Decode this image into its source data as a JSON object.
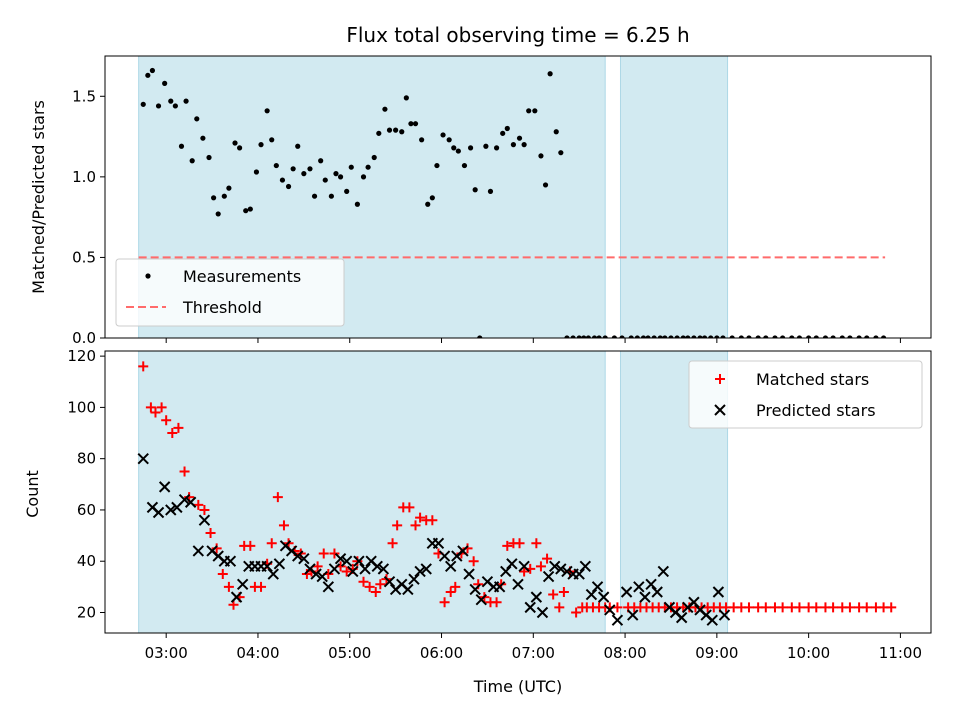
{
  "chart_data": [
    {
      "type": "scatter",
      "title": "Flux total observing time = 6.25 h",
      "xlabel": "",
      "ylabel": "Matched/Predicted stars",
      "xlim": [
        "02:20",
        "11:20"
      ],
      "ylim": [
        0.0,
        1.75
      ],
      "yticks": [
        0.0,
        0.5,
        1.0,
        1.5
      ],
      "ytick_labels": [
        "0.0",
        "0.5",
        "1.0",
        "1.5"
      ],
      "shaded_intervals": [
        [
          "02:42",
          "07:47"
        ],
        [
          "07:57",
          "09:07"
        ]
      ],
      "shade_color": "#add8e6",
      "legend_position": "lower-left",
      "legend": [
        "Measurements",
        "Threshold"
      ],
      "threshold": {
        "name": "Threshold",
        "value": 0.5,
        "x_range": [
          "02:42",
          "10:50"
        ],
        "color": "#ff6b6b",
        "style": "dashed"
      },
      "series": [
        {
          "name": "Measurements",
          "color": "#000000",
          "marker": "dot",
          "x": [
            "02:45",
            "02:48",
            "02:51",
            "02:55",
            "02:59",
            "03:03",
            "03:06",
            "03:10",
            "03:13",
            "03:17",
            "03:20",
            "03:24",
            "03:28",
            "03:31",
            "03:34",
            "03:38",
            "03:41",
            "03:45",
            "03:48",
            "03:52",
            "03:55",
            "03:59",
            "04:02",
            "04:06",
            "04:09",
            "04:12",
            "04:16",
            "04:20",
            "04:23",
            "04:26",
            "04:30",
            "04:34",
            "04:37",
            "04:41",
            "04:44",
            "04:48",
            "04:51",
            "04:54",
            "04:58",
            "05:01",
            "05:05",
            "05:09",
            "05:12",
            "05:16",
            "05:19",
            "05:23",
            "05:26",
            "05:30",
            "05:34",
            "05:37",
            "05:40",
            "05:43",
            "05:47",
            "05:51",
            "05:54",
            "05:57",
            "06:01",
            "06:05",
            "06:08",
            "06:11",
            "06:15",
            "06:19",
            "06:22",
            "06:25",
            "06:29",
            "06:32",
            "06:36",
            "06:40",
            "06:43",
            "06:47",
            "06:51",
            "06:54",
            "06:57",
            "07:01",
            "07:05",
            "07:08",
            "07:11",
            "07:15",
            "07:18",
            "07:22",
            "07:26",
            "07:30",
            "07:33",
            "07:36",
            "07:40",
            "07:43",
            "07:47",
            "07:53",
            "07:58",
            "08:04",
            "08:08",
            "08:12",
            "08:15",
            "08:19",
            "08:23",
            "08:26",
            "08:30",
            "08:34",
            "08:38",
            "08:41",
            "08:45",
            "08:49",
            "08:52",
            "08:56",
            "09:00",
            "09:04"
          ],
          "y": [
            1.45,
            1.63,
            1.66,
            1.44,
            1.58,
            1.47,
            1.44,
            1.19,
            1.47,
            1.1,
            1.36,
            1.24,
            1.12,
            0.87,
            0.77,
            0.88,
            0.93,
            1.21,
            1.18,
            0.79,
            0.8,
            1.03,
            1.2,
            1.41,
            1.23,
            1.07,
            0.98,
            0.94,
            1.05,
            1.19,
            1.02,
            1.05,
            0.88,
            1.1,
            0.98,
            0.88,
            1.02,
            1.0,
            0.91,
            1.06,
            0.83,
            1.0,
            1.06,
            1.12,
            1.27,
            1.42,
            1.29,
            1.29,
            1.28,
            1.49,
            1.33,
            1.33,
            1.23,
            0.83,
            0.87,
            1.07,
            1.26,
            1.23,
            1.18,
            1.16,
            1.07,
            1.18,
            0.92,
            0.0,
            1.19,
            0.91,
            1.18,
            1.27,
            1.3,
            1.2,
            1.24,
            1.2,
            1.41,
            1.41,
            1.13,
            0.95,
            1.64,
            1.28,
            1.15,
            0.0,
            0.0,
            0.0,
            0.0,
            0.0,
            0.0,
            0.0,
            0.0,
            0.0,
            0.0,
            0.0,
            0.0,
            0.0,
            0.0,
            0.0,
            0.0,
            0.0,
            0.0,
            0.0,
            0.0,
            0.0,
            0.0,
            0.0,
            0.0,
            0.0,
            0.0,
            0.0
          ],
          "x_tail": [
            "09:10",
            "09:16",
            "09:21",
            "09:27",
            "09:32",
            "09:38",
            "09:43",
            "09:49",
            "09:54",
            "10:00",
            "10:05",
            "10:11",
            "10:16",
            "10:22",
            "10:27",
            "10:33",
            "10:38",
            "10:44",
            "10:49"
          ],
          "y_tail": [
            0.0,
            0.0,
            0.0,
            0.0,
            0.0,
            0.0,
            0.0,
            0.0,
            0.0,
            0.0,
            0.0,
            0.0,
            0.0,
            0.0,
            0.0,
            0.0,
            0.0,
            0.0,
            0.0
          ]
        }
      ]
    },
    {
      "type": "scatter",
      "title": "",
      "xlabel": "Time (UTC)",
      "ylabel": "Count",
      "xlim": [
        "02:20",
        "11:20"
      ],
      "xticks": [
        "03:00",
        "04:00",
        "05:00",
        "06:00",
        "07:00",
        "08:00",
        "09:00",
        "10:00",
        "11:00"
      ],
      "ylim": [
        12,
        122
      ],
      "yticks": [
        20,
        40,
        60,
        80,
        100,
        120
      ],
      "ytick_labels": [
        "20",
        "40",
        "60",
        "80",
        "100",
        "120"
      ],
      "shaded_intervals": [
        [
          "02:42",
          "07:47"
        ],
        [
          "07:57",
          "09:07"
        ]
      ],
      "shade_color": "#add8e6",
      "legend_position": "top-right",
      "legend": [
        "Matched stars",
        "Predicted stars"
      ],
      "series": [
        {
          "name": "Matched stars",
          "color": "#ff0000",
          "marker": "plus",
          "x": [
            "02:45",
            "02:50",
            "02:53",
            "02:57",
            "03:00",
            "03:04",
            "03:08",
            "03:12",
            "03:15",
            "03:21",
            "03:25",
            "03:29",
            "03:33",
            "03:37",
            "03:41",
            "03:44",
            "03:48",
            "03:51",
            "03:55",
            "03:58",
            "04:02",
            "04:06",
            "04:09",
            "04:13",
            "04:17",
            "04:20",
            "04:24",
            "04:28",
            "04:32",
            "04:35",
            "04:39",
            "04:43",
            "04:46",
            "04:50",
            "04:54",
            "04:58",
            "05:02",
            "05:05",
            "05:09",
            "05:13",
            "05:17",
            "05:20",
            "05:24",
            "05:28",
            "05:31",
            "05:35",
            "05:39",
            "05:43",
            "05:46",
            "05:50",
            "05:54",
            "05:58",
            "06:02",
            "06:06",
            "06:09",
            "06:13",
            "06:17",
            "06:21",
            "06:24",
            "06:28",
            "06:32",
            "06:36",
            "06:39",
            "06:43",
            "06:47",
            "06:51",
            "06:54",
            "06:58",
            "07:02",
            "07:05",
            "07:09",
            "07:13",
            "07:17",
            "07:20",
            "07:24",
            "07:28",
            "07:32",
            "07:35",
            "07:39",
            "07:43",
            "07:47",
            "07:50",
            "07:55",
            "08:02",
            "08:06",
            "08:10",
            "08:14",
            "08:18",
            "08:22",
            "08:26",
            "08:30",
            "08:34",
            "08:38",
            "08:42",
            "08:46",
            "08:50",
            "08:54",
            "08:58",
            "09:02",
            "09:06",
            "09:11",
            "09:16",
            "09:21",
            "09:27",
            "09:32",
            "09:38",
            "09:43",
            "09:49",
            "09:54",
            "10:00",
            "10:05",
            "10:11",
            "10:16",
            "10:22",
            "10:27",
            "10:33",
            "10:38",
            "10:44",
            "10:49",
            "10:54"
          ],
          "y": [
            116,
            100,
            98,
            100,
            95,
            90,
            92,
            75,
            65,
            62,
            60,
            51,
            45,
            35,
            30,
            23,
            26,
            46,
            46,
            30,
            30,
            39,
            47,
            65,
            54,
            47,
            44,
            43,
            35,
            36,
            38,
            43,
            35,
            43,
            38,
            36,
            37,
            40,
            32,
            30,
            28,
            31,
            33,
            47,
            54,
            61,
            61,
            54,
            57,
            56,
            56,
            43,
            24,
            28,
            30,
            43,
            45,
            40,
            31,
            26,
            24,
            24,
            31,
            46,
            47,
            47,
            36,
            37,
            47,
            38,
            41,
            27,
            22,
            28,
            36,
            20,
            22,
            22,
            22,
            22,
            22,
            22,
            22,
            22,
            22,
            22,
            22,
            22,
            22,
            22,
            22,
            22,
            22,
            22,
            22,
            22,
            22,
            22,
            22,
            22,
            22,
            22,
            22,
            22,
            22,
            22,
            22,
            22,
            22,
            22,
            22,
            22,
            22,
            22,
            22,
            22,
            22,
            22,
            22,
            22
          ]
        },
        {
          "name": "Predicted stars",
          "color": "#000000",
          "marker": "x",
          "x": [
            "02:45",
            "02:51",
            "02:55",
            "02:59",
            "03:03",
            "03:07",
            "03:12",
            "03:16",
            "03:21",
            "03:25",
            "03:30",
            "03:34",
            "03:38",
            "03:42",
            "03:46",
            "03:50",
            "03:54",
            "03:58",
            "04:02",
            "04:06",
            "04:10",
            "04:14",
            "04:18",
            "04:22",
            "04:26",
            "04:30",
            "04:34",
            "04:38",
            "04:42",
            "04:46",
            "04:50",
            "04:54",
            "04:58",
            "05:02",
            "05:06",
            "05:10",
            "05:14",
            "05:18",
            "05:22",
            "05:26",
            "05:30",
            "05:34",
            "05:38",
            "05:42",
            "05:46",
            "05:50",
            "05:54",
            "05:58",
            "06:02",
            "06:06",
            "06:10",
            "06:14",
            "06:18",
            "06:22",
            "06:26",
            "06:30",
            "06:34",
            "06:38",
            "06:42",
            "06:46",
            "06:50",
            "06:54",
            "06:58",
            "07:02",
            "07:06",
            "07:10",
            "07:14",
            "07:18",
            "07:22",
            "07:26",
            "07:30",
            "07:34",
            "07:38",
            "07:42",
            "07:46",
            "07:50",
            "07:55",
            "08:01",
            "08:05",
            "08:09",
            "08:13",
            "08:17",
            "08:21",
            "08:25",
            "08:29",
            "08:33",
            "08:37",
            "08:41",
            "08:45",
            "08:49",
            "08:53",
            "08:57",
            "09:01",
            "09:05"
          ],
          "y": [
            80,
            61,
            59,
            69,
            60,
            61,
            64,
            63,
            44,
            56,
            44,
            42,
            40,
            40,
            26,
            31,
            38,
            38,
            38,
            38,
            35,
            39,
            46,
            44,
            42,
            41,
            37,
            35,
            34,
            30,
            37,
            41,
            40,
            36,
            40,
            37,
            40,
            38,
            37,
            32,
            29,
            31,
            29,
            33,
            36,
            37,
            47,
            47,
            42,
            38,
            42,
            44,
            35,
            29,
            25,
            32,
            30,
            30,
            36,
            39,
            31,
            38,
            22,
            26,
            20,
            34,
            38,
            37,
            36,
            35,
            35,
            38,
            27,
            30,
            26,
            21,
            17,
            28,
            19,
            30,
            26,
            31,
            28,
            36,
            22,
            20,
            18,
            22,
            24,
            21,
            19,
            17,
            28,
            19
          ]
        }
      ]
    }
  ]
}
